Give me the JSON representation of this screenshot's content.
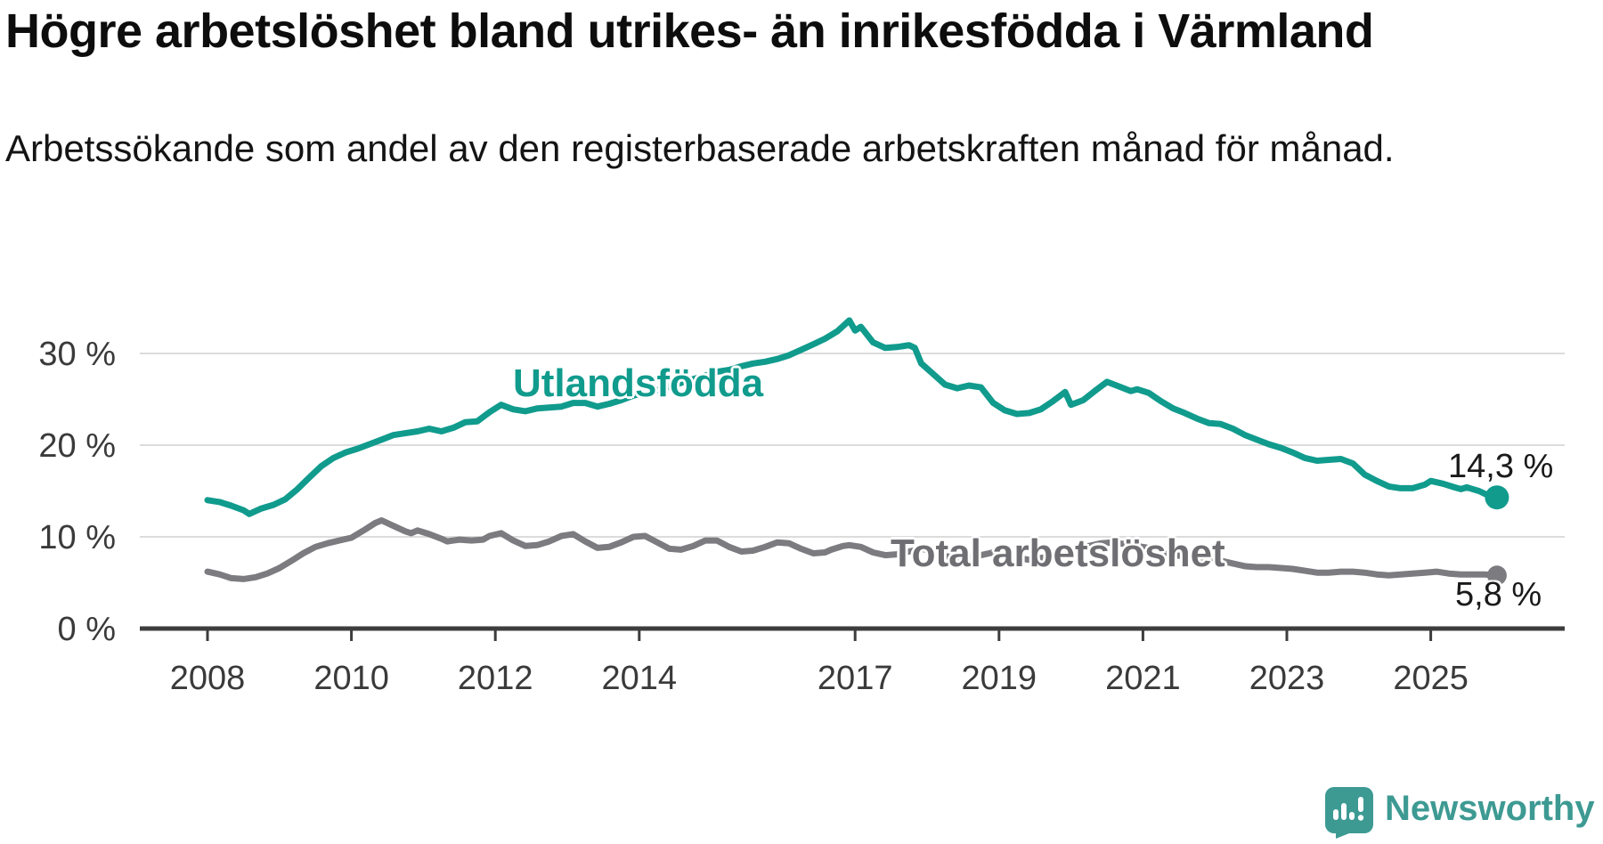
{
  "header": {
    "title": "Högre arbetslöshet bland utrikes- än inrikesfödda i Värmland",
    "subtitle": "Arbetssökande som andel av den registerbaserade arbetskraften månad för månad."
  },
  "chart_data": {
    "type": "line",
    "title": "Högre arbetslöshet bland utrikes- än inrikesfödda i Värmland",
    "subtitle": "Arbetssökande som andel av den registerbaserade arbetskraften månad för månad.",
    "xlabel": "",
    "ylabel": "",
    "unit": "%",
    "grid": "horizontal",
    "gridline_color": "#dcdcdc",
    "axis_color": "#3d3d3d",
    "xlim": [
      2007.06,
      2026.8
    ],
    "ylim": [
      0,
      35
    ],
    "x_ticks": [
      {
        "value": 2008,
        "label": "2008"
      },
      {
        "value": 2010,
        "label": "2010"
      },
      {
        "value": 2012,
        "label": "2012"
      },
      {
        "value": 2014,
        "label": "2014"
      },
      {
        "value": 2017,
        "label": "2017"
      },
      {
        "value": 2019,
        "label": "2019"
      },
      {
        "value": 2021,
        "label": "2021"
      },
      {
        "value": 2023,
        "label": "2023"
      },
      {
        "value": 2025,
        "label": "2025"
      }
    ],
    "y_ticks": [
      {
        "value": 0,
        "label": "0 %"
      },
      {
        "value": 10,
        "label": "10 %"
      },
      {
        "value": 20,
        "label": "20 %"
      },
      {
        "value": 30,
        "label": "30 %"
      }
    ],
    "series": [
      {
        "name": "Utlandsfödda",
        "color": "#109b8d",
        "end_label": "14,3 %",
        "end_value": 14.3,
        "points": [
          [
            2008.0,
            14.0
          ],
          [
            2008.17,
            13.8
          ],
          [
            2008.33,
            13.4
          ],
          [
            2008.5,
            12.9
          ],
          [
            2008.58,
            12.5
          ],
          [
            2008.75,
            13.1
          ],
          [
            2008.92,
            13.5
          ],
          [
            2009.08,
            14.1
          ],
          [
            2009.25,
            15.2
          ],
          [
            2009.42,
            16.5
          ],
          [
            2009.58,
            17.7
          ],
          [
            2009.75,
            18.6
          ],
          [
            2009.92,
            19.2
          ],
          [
            2010.08,
            19.6
          ],
          [
            2010.25,
            20.1
          ],
          [
            2010.42,
            20.6
          ],
          [
            2010.58,
            21.1
          ],
          [
            2010.75,
            21.3
          ],
          [
            2010.92,
            21.5
          ],
          [
            2011.08,
            21.8
          ],
          [
            2011.25,
            21.5
          ],
          [
            2011.42,
            21.9
          ],
          [
            2011.58,
            22.5
          ],
          [
            2011.75,
            22.6
          ],
          [
            2011.92,
            23.6
          ],
          [
            2012.08,
            24.4
          ],
          [
            2012.25,
            23.9
          ],
          [
            2012.42,
            23.7
          ],
          [
            2012.58,
            24.0
          ],
          [
            2012.75,
            24.1
          ],
          [
            2012.92,
            24.2
          ],
          [
            2013.08,
            24.6
          ],
          [
            2013.25,
            24.6
          ],
          [
            2013.42,
            24.2
          ],
          [
            2013.58,
            24.5
          ],
          [
            2013.75,
            24.9
          ],
          [
            2013.92,
            25.4
          ],
          [
            2014.08,
            25.8
          ],
          [
            2014.25,
            26.0
          ],
          [
            2014.42,
            26.4
          ],
          [
            2014.58,
            26.8
          ],
          [
            2014.75,
            27.2
          ],
          [
            2014.92,
            27.6
          ],
          [
            2015.08,
            28.0
          ],
          [
            2015.25,
            28.2
          ],
          [
            2015.42,
            28.6
          ],
          [
            2015.58,
            28.9
          ],
          [
            2015.75,
            29.1
          ],
          [
            2015.92,
            29.4
          ],
          [
            2016.08,
            29.8
          ],
          [
            2016.25,
            30.4
          ],
          [
            2016.42,
            31.0
          ],
          [
            2016.58,
            31.6
          ],
          [
            2016.75,
            32.4
          ],
          [
            2016.92,
            33.6
          ],
          [
            2017.0,
            32.5
          ],
          [
            2017.08,
            32.9
          ],
          [
            2017.25,
            31.2
          ],
          [
            2017.42,
            30.6
          ],
          [
            2017.58,
            30.7
          ],
          [
            2017.75,
            30.9
          ],
          [
            2017.83,
            30.6
          ],
          [
            2017.92,
            28.9
          ],
          [
            2018.08,
            27.8
          ],
          [
            2018.25,
            26.6
          ],
          [
            2018.42,
            26.2
          ],
          [
            2018.58,
            26.5
          ],
          [
            2018.75,
            26.3
          ],
          [
            2018.92,
            24.6
          ],
          [
            2019.08,
            23.8
          ],
          [
            2019.25,
            23.4
          ],
          [
            2019.42,
            23.5
          ],
          [
            2019.58,
            23.9
          ],
          [
            2019.75,
            24.8
          ],
          [
            2019.92,
            25.8
          ],
          [
            2020.0,
            24.4
          ],
          [
            2020.17,
            24.9
          ],
          [
            2020.33,
            25.9
          ],
          [
            2020.5,
            26.9
          ],
          [
            2020.67,
            26.4
          ],
          [
            2020.83,
            25.9
          ],
          [
            2020.92,
            26.1
          ],
          [
            2021.08,
            25.7
          ],
          [
            2021.25,
            24.8
          ],
          [
            2021.42,
            24.0
          ],
          [
            2021.58,
            23.5
          ],
          [
            2021.75,
            22.9
          ],
          [
            2021.92,
            22.4
          ],
          [
            2022.08,
            22.3
          ],
          [
            2022.25,
            21.8
          ],
          [
            2022.42,
            21.1
          ],
          [
            2022.58,
            20.6
          ],
          [
            2022.75,
            20.1
          ],
          [
            2022.92,
            19.7
          ],
          [
            2023.08,
            19.2
          ],
          [
            2023.25,
            18.6
          ],
          [
            2023.42,
            18.3
          ],
          [
            2023.58,
            18.4
          ],
          [
            2023.75,
            18.5
          ],
          [
            2023.92,
            18.0
          ],
          [
            2024.08,
            16.8
          ],
          [
            2024.25,
            16.1
          ],
          [
            2024.42,
            15.5
          ],
          [
            2024.58,
            15.3
          ],
          [
            2024.75,
            15.3
          ],
          [
            2024.92,
            15.7
          ],
          [
            2025.0,
            16.1
          ],
          [
            2025.17,
            15.8
          ],
          [
            2025.33,
            15.4
          ],
          [
            2025.42,
            15.2
          ],
          [
            2025.5,
            15.4
          ],
          [
            2025.67,
            15.0
          ],
          [
            2025.83,
            14.4
          ],
          [
            2025.92,
            14.3
          ]
        ]
      },
      {
        "name": "Total arbetslöshet",
        "color": "#7b7b80",
        "end_label": "5,8 %",
        "end_value": 5.8,
        "points": [
          [
            2008.0,
            6.2
          ],
          [
            2008.17,
            5.9
          ],
          [
            2008.33,
            5.5
          ],
          [
            2008.5,
            5.4
          ],
          [
            2008.67,
            5.6
          ],
          [
            2008.83,
            6.0
          ],
          [
            2009.0,
            6.6
          ],
          [
            2009.17,
            7.4
          ],
          [
            2009.33,
            8.2
          ],
          [
            2009.5,
            8.9
          ],
          [
            2009.67,
            9.3
          ],
          [
            2009.83,
            9.6
          ],
          [
            2010.0,
            9.9
          ],
          [
            2010.17,
            10.7
          ],
          [
            2010.33,
            11.5
          ],
          [
            2010.42,
            11.8
          ],
          [
            2010.58,
            11.2
          ],
          [
            2010.75,
            10.6
          ],
          [
            2010.83,
            10.4
          ],
          [
            2010.92,
            10.7
          ],
          [
            2011.08,
            10.3
          ],
          [
            2011.25,
            9.8
          ],
          [
            2011.33,
            9.5
          ],
          [
            2011.5,
            9.7
          ],
          [
            2011.67,
            9.6
          ],
          [
            2011.83,
            9.7
          ],
          [
            2011.92,
            10.1
          ],
          [
            2012.08,
            10.4
          ],
          [
            2012.25,
            9.6
          ],
          [
            2012.42,
            9.0
          ],
          [
            2012.58,
            9.1
          ],
          [
            2012.75,
            9.5
          ],
          [
            2012.92,
            10.1
          ],
          [
            2013.08,
            10.3
          ],
          [
            2013.25,
            9.5
          ],
          [
            2013.42,
            8.8
          ],
          [
            2013.58,
            8.9
          ],
          [
            2013.75,
            9.4
          ],
          [
            2013.92,
            10.0
          ],
          [
            2014.08,
            10.1
          ],
          [
            2014.25,
            9.4
          ],
          [
            2014.42,
            8.7
          ],
          [
            2014.58,
            8.6
          ],
          [
            2014.75,
            9.0
          ],
          [
            2014.92,
            9.6
          ],
          [
            2015.08,
            9.6
          ],
          [
            2015.25,
            8.9
          ],
          [
            2015.42,
            8.4
          ],
          [
            2015.58,
            8.5
          ],
          [
            2015.75,
            8.9
          ],
          [
            2015.92,
            9.4
          ],
          [
            2016.08,
            9.3
          ],
          [
            2016.25,
            8.7
          ],
          [
            2016.42,
            8.2
          ],
          [
            2016.58,
            8.3
          ],
          [
            2016.67,
            8.6
          ],
          [
            2016.83,
            9.0
          ],
          [
            2016.92,
            9.1
          ],
          [
            2017.08,
            8.9
          ],
          [
            2017.25,
            8.3
          ],
          [
            2017.42,
            8.0
          ],
          [
            2017.58,
            8.1
          ],
          [
            2017.75,
            8.4
          ],
          [
            2017.92,
            8.7
          ],
          [
            2018.08,
            8.5
          ],
          [
            2018.25,
            7.9
          ],
          [
            2018.42,
            7.7
          ],
          [
            2018.58,
            7.8
          ],
          [
            2018.75,
            8.0
          ],
          [
            2018.92,
            8.3
          ],
          [
            2019.08,
            8.1
          ],
          [
            2019.25,
            7.7
          ],
          [
            2019.42,
            7.5
          ],
          [
            2019.58,
            7.7
          ],
          [
            2019.75,
            7.9
          ],
          [
            2019.92,
            8.3
          ],
          [
            2020.08,
            8.6
          ],
          [
            2020.25,
            9.0
          ],
          [
            2020.42,
            9.3
          ],
          [
            2020.58,
            9.4
          ],
          [
            2020.75,
            9.2
          ],
          [
            2020.92,
            9.0
          ],
          [
            2021.08,
            8.8
          ],
          [
            2021.25,
            8.4
          ],
          [
            2021.42,
            8.0
          ],
          [
            2021.58,
            7.9
          ],
          [
            2021.75,
            7.8
          ],
          [
            2021.92,
            7.6
          ],
          [
            2022.08,
            7.4
          ],
          [
            2022.25,
            7.1
          ],
          [
            2022.42,
            6.8
          ],
          [
            2022.58,
            6.7
          ],
          [
            2022.75,
            6.7
          ],
          [
            2022.92,
            6.6
          ],
          [
            2023.08,
            6.5
          ],
          [
            2023.25,
            6.3
          ],
          [
            2023.42,
            6.1
          ],
          [
            2023.58,
            6.1
          ],
          [
            2023.75,
            6.2
          ],
          [
            2023.92,
            6.2
          ],
          [
            2024.08,
            6.1
          ],
          [
            2024.25,
            5.9
          ],
          [
            2024.42,
            5.8
          ],
          [
            2024.58,
            5.9
          ],
          [
            2024.75,
            6.0
          ],
          [
            2024.92,
            6.1
          ],
          [
            2025.08,
            6.2
          ],
          [
            2025.25,
            6.0
          ],
          [
            2025.42,
            5.9
          ],
          [
            2025.58,
            5.9
          ],
          [
            2025.75,
            5.9
          ],
          [
            2025.92,
            5.8
          ]
        ]
      }
    ]
  },
  "footer": {
    "brand": "Newsworthy",
    "brand_color": "#3d9a93"
  }
}
